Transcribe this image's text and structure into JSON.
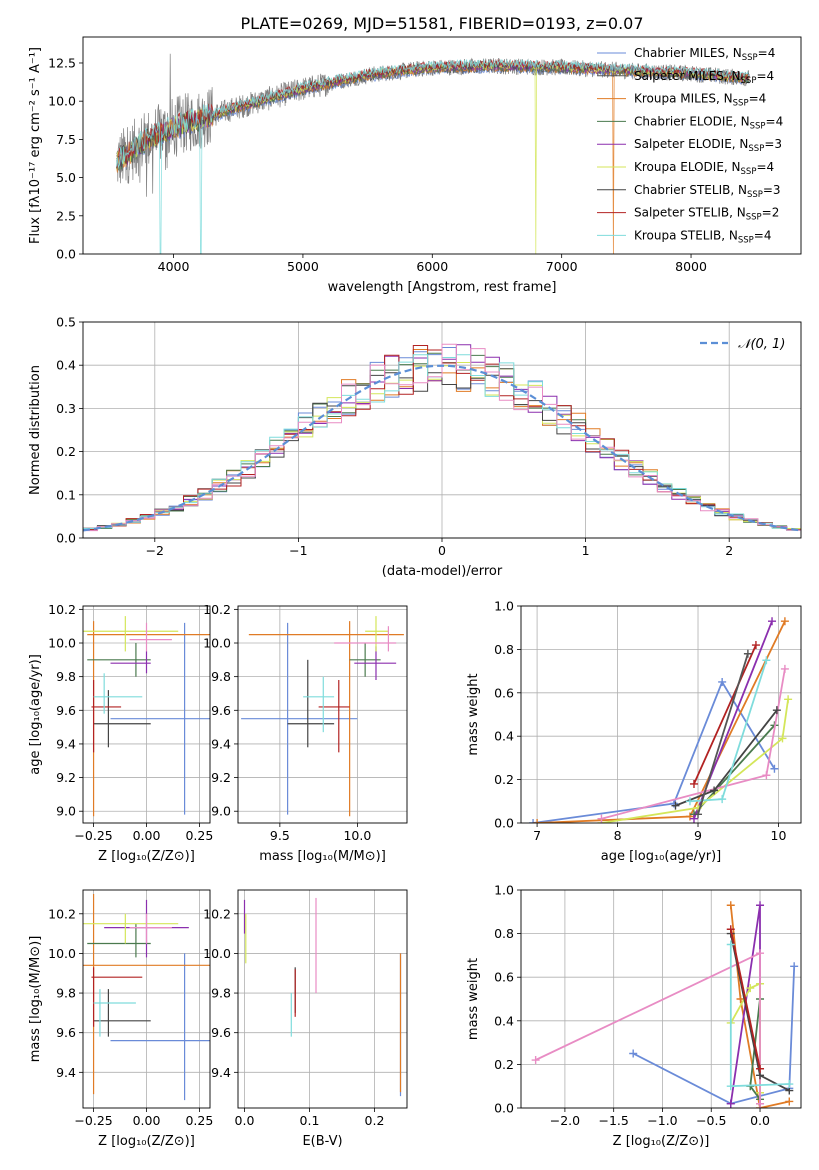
{
  "figure": {
    "title": "PLATE=0269, MJD=51581, FIBERID=0193, z=0.07"
  },
  "chart_data": [
    {
      "id": "spectrum",
      "type": "line",
      "xlabel": "wavelength [Angstrom, rest frame]",
      "ylabel": "Flux [fλ10⁻¹⁷ erg cm⁻² s⁻¹ A⁻¹]",
      "xlim": [
        3300,
        8850
      ],
      "ylim": [
        0,
        14.2
      ],
      "xticks": [
        4000,
        5000,
        6000,
        7000,
        8000
      ],
      "yticks": [
        0.0,
        2.5,
        5.0,
        7.5,
        10.0,
        12.5
      ],
      "legend": "right",
      "grid": false,
      "data_series": {
        "name": "",
        "color": "#808080",
        "x_range": [
          3560,
          8450
        ],
        "approx_continuum": [
          [
            3560,
            6.0
          ],
          [
            3800,
            7.5
          ],
          [
            4000,
            8.3
          ],
          [
            4500,
            9.6
          ],
          [
            5000,
            10.8
          ],
          [
            5500,
            11.7
          ],
          [
            6000,
            12.2
          ],
          [
            6500,
            12.3
          ],
          [
            7000,
            12.2
          ],
          [
            7500,
            12.0
          ],
          [
            8000,
            11.8
          ],
          [
            8450,
            11.5
          ]
        ]
      },
      "series": [
        {
          "name": "Chabrier MILES, N",
          "sub": "SSP",
          "suffix": "=4",
          "color": "#6a8bd8"
        },
        {
          "name": "Salpeter MILES, N",
          "sub": "SSP",
          "suffix": "=4",
          "color": "#555555"
        },
        {
          "name": "Kroupa MILES, N",
          "sub": "SSP",
          "suffix": "=4",
          "color": "#e07b25"
        },
        {
          "name": "Chabrier ELODIE, N",
          "sub": "SSP",
          "suffix": "=4",
          "color": "#4a7a4e"
        },
        {
          "name": "Salpeter ELODIE, N",
          "sub": "SSP",
          "suffix": "=3",
          "color": "#8b2fae"
        },
        {
          "name": "Kroupa ELODIE, N",
          "sub": "SSP",
          "suffix": "=4",
          "color": "#d4e65a"
        },
        {
          "name": "Chabrier STELIB, N",
          "sub": "SSP",
          "suffix": "=3",
          "color": "#444444"
        },
        {
          "name": "Salpeter STELIB, N",
          "sub": "SSP",
          "suffix": "=2",
          "color": "#b22222"
        },
        {
          "name": "Kroupa STELIB, N",
          "sub": "SSP",
          "suffix": "=4",
          "color": "#7fdcdc"
        }
      ]
    },
    {
      "id": "residuals",
      "type": "line",
      "xlabel": "(data-model)/error",
      "ylabel": "Normed distribution",
      "xlim": [
        -2.5,
        2.5
      ],
      "ylim": [
        0,
        0.5
      ],
      "xticks": [
        -2,
        -1,
        0,
        1,
        2
      ],
      "yticks": [
        0.0,
        0.1,
        0.2,
        0.3,
        0.4,
        0.5
      ],
      "grid": true,
      "legend": "top-right",
      "gaussian": {
        "name": "𝒩(0, 1)",
        "color": "#5b8fd6",
        "mean": 0,
        "sigma": 1
      },
      "bin_width": 0.1,
      "histogram_colors": [
        "#6a8bd8",
        "#e07b25",
        "#4a7a4e",
        "#8b2fae",
        "#d4e65a",
        "#444444",
        "#b22222",
        "#7fdcdc",
        "#e88cc4"
      ]
    },
    {
      "id": "age-vs-Z",
      "type": "scatter",
      "xlabel": "Z [log₁₀(Z/Z⊙)]",
      "ylabel": "age  [log₁₀(age/yr)]",
      "xlim": [
        -0.3,
        0.3
      ],
      "ylim": [
        8.93,
        10.22
      ],
      "xticks": [
        -0.25,
        0.0,
        0.25
      ],
      "xticklabels": [
        "−0.25",
        "0.00",
        "0.25"
      ],
      "yticks": [
        9.0,
        9.2,
        9.4,
        9.6,
        9.8,
        10.0,
        10.2
      ],
      "grid": true,
      "errorbars": [
        {
          "color": "#6a8bd8",
          "x": [
            -0.17,
            0.3
          ],
          "y": [
            8.98,
            10.12
          ],
          "cx": 0.18,
          "cy": 9.55
        },
        {
          "color": "#e07b25",
          "x": [
            -0.28,
            0.3
          ],
          "y": [
            8.97,
            10.13
          ],
          "cx": -0.25,
          "cy": 10.05
        },
        {
          "color": "#4a7a4e",
          "x": [
            -0.28,
            0.02
          ],
          "y": [
            9.8,
            10.0
          ],
          "cx": -0.05,
          "cy": 9.9
        },
        {
          "color": "#8b2fae",
          "x": [
            -0.17,
            0.02
          ],
          "y": [
            9.82,
            9.95
          ],
          "cx": 0.0,
          "cy": 9.88
        },
        {
          "color": "#d4e65a",
          "x": [
            -0.3,
            0.15
          ],
          "y": [
            9.95,
            10.16
          ],
          "cx": -0.1,
          "cy": 10.07
        },
        {
          "color": "#e88cc4",
          "x": [
            -0.08,
            0.12
          ],
          "y": [
            9.95,
            10.12
          ],
          "cx": 0.0,
          "cy": 10.02
        },
        {
          "color": "#444444",
          "x": [
            -0.25,
            0.02
          ],
          "y": [
            9.38,
            9.72
          ],
          "cx": -0.18,
          "cy": 9.52
        },
        {
          "color": "#b22222",
          "x": [
            -0.26,
            -0.12
          ],
          "y": [
            9.35,
            9.78
          ],
          "cx": -0.25,
          "cy": 9.62
        },
        {
          "color": "#7fdcdc",
          "x": [
            -0.25,
            -0.02
          ],
          "y": [
            9.58,
            9.82
          ],
          "cx": -0.2,
          "cy": 9.68
        }
      ]
    },
    {
      "id": "age-vs-mass",
      "type": "scatter",
      "xlabel": "mass [log₁₀(M/M⊙)]",
      "ylabel": "",
      "xlim": [
        9.23,
        10.32
      ],
      "ylim": [
        8.93,
        10.22
      ],
      "xticks": [
        9.5,
        10.0
      ],
      "yticks": [
        9.0,
        9.2,
        9.4,
        9.6,
        9.8,
        10.0,
        10.2
      ],
      "grid": true,
      "errorbars": [
        {
          "color": "#6a8bd8",
          "x": [
            9.25,
            10.0
          ],
          "y": [
            8.98,
            10.12
          ],
          "cx": 9.55,
          "cy": 9.55
        },
        {
          "color": "#e07b25",
          "x": [
            9.3,
            10.3
          ],
          "y": [
            8.97,
            10.13
          ],
          "cx": 9.95,
          "cy": 10.05
        },
        {
          "color": "#4a7a4e",
          "x": [
            9.95,
            10.15
          ],
          "y": [
            9.8,
            10.0
          ],
          "cx": 10.05,
          "cy": 9.9
        },
        {
          "color": "#8b2fae",
          "x": [
            9.98,
            10.25
          ],
          "y": [
            9.78,
            9.98
          ],
          "cx": 10.12,
          "cy": 9.88
        },
        {
          "color": "#d4e65a",
          "x": [
            10.05,
            10.2
          ],
          "y": [
            9.95,
            10.16
          ],
          "cx": 10.12,
          "cy": 10.07
        },
        {
          "color": "#e88cc4",
          "x": [
            9.85,
            10.25
          ],
          "y": [
            9.95,
            10.1
          ],
          "cx": 10.2,
          "cy": 10.0
        },
        {
          "color": "#444444",
          "x": [
            9.55,
            9.85
          ],
          "y": [
            9.38,
            9.9
          ],
          "cx": 9.68,
          "cy": 9.52
        },
        {
          "color": "#b22222",
          "x": [
            9.75,
            9.95
          ],
          "y": [
            9.35,
            9.78
          ],
          "cx": 9.88,
          "cy": 9.62
        },
        {
          "color": "#7fdcdc",
          "x": [
            9.65,
            9.85
          ],
          "y": [
            9.47,
            9.8
          ],
          "cx": 9.78,
          "cy": 9.68
        }
      ]
    },
    {
      "id": "massweight-vs-age",
      "type": "line",
      "xlabel": "age  [log₁₀(age/yr)]",
      "ylabel": "mass weight",
      "xlim": [
        6.8,
        10.28
      ],
      "ylim": [
        0,
        1.0
      ],
      "xticks": [
        7,
        8,
        9,
        10
      ],
      "yticks": [
        0.0,
        0.2,
        0.4,
        0.6,
        0.8,
        1.0
      ],
      "grid": true,
      "series": [
        {
          "color": "#6a8bd8",
          "points": [
            [
              6.95,
              0.0
            ],
            [
              8.7,
              0.09
            ],
            [
              9.3,
              0.65
            ],
            [
              9.95,
              0.25
            ]
          ]
        },
        {
          "color": "#e07b25",
          "points": [
            [
              7.0,
              0.0
            ],
            [
              8.9,
              0.03
            ],
            [
              10.08,
              0.93
            ]
          ]
        },
        {
          "color": "#4a7a4e",
          "points": [
            [
              8.95,
              0.04
            ],
            [
              9.95,
              0.45
            ]
          ]
        },
        {
          "color": "#8b2fae",
          "points": [
            [
              8.95,
              0.02
            ],
            [
              9.92,
              0.93
            ]
          ]
        },
        {
          "color": "#d4e65a",
          "points": [
            [
              7.8,
              0.0
            ],
            [
              9.0,
              0.07
            ],
            [
              10.05,
              0.39
            ],
            [
              10.12,
              0.57
            ]
          ]
        },
        {
          "color": "#e88cc4",
          "points": [
            [
              7.8,
              0.02
            ],
            [
              9.85,
              0.22
            ],
            [
              10.08,
              0.71
            ]
          ]
        },
        {
          "color": "#444444",
          "points": [
            [
              8.72,
              0.08
            ],
            [
              9.2,
              0.15
            ],
            [
              9.98,
              0.52
            ]
          ]
        },
        {
          "color": "#b22222",
          "points": [
            [
              8.95,
              0.18
            ],
            [
              9.72,
              0.82
            ]
          ]
        },
        {
          "color": "#7fdcdc",
          "points": [
            [
              8.9,
              0.1
            ],
            [
              9.3,
              0.11
            ],
            [
              9.85,
              0.75
            ]
          ]
        },
        {
          "color": "#555555",
          "points": [
            [
              9.0,
              0.04
            ],
            [
              9.62,
              0.78
            ]
          ]
        }
      ]
    },
    {
      "id": "mass-vs-Z",
      "type": "scatter",
      "xlabel": "Z [log₁₀(Z/Z⊙)]",
      "ylabel": "mass [log₁₀(M/M⊙)]",
      "xlim": [
        -0.3,
        0.3
      ],
      "ylim": [
        9.22,
        10.32
      ],
      "xticks": [
        -0.25,
        0.0,
        0.25
      ],
      "xticklabels": [
        "−0.25",
        "0.00",
        "0.25"
      ],
      "yticks": [
        9.4,
        9.6,
        9.8,
        10.0,
        10.2
      ],
      "grid": true,
      "errorbars": [
        {
          "color": "#6a8bd8",
          "x": [
            -0.17,
            0.3
          ],
          "y": [
            9.26,
            10.0
          ],
          "cx": 0.18,
          "cy": 9.56
        },
        {
          "color": "#e07b25",
          "x": [
            -0.3,
            0.3
          ],
          "y": [
            9.29,
            10.3
          ],
          "cx": -0.25,
          "cy": 9.94
        },
        {
          "color": "#4a7a4e",
          "x": [
            -0.28,
            0.02
          ],
          "y": [
            9.98,
            10.15
          ],
          "cx": -0.05,
          "cy": 10.05
        },
        {
          "color": "#8b2fae",
          "x": [
            -0.2,
            0.2
          ],
          "y": [
            9.98,
            10.27
          ],
          "cx": 0.0,
          "cy": 10.13
        },
        {
          "color": "#d4e65a",
          "x": [
            -0.3,
            0.15
          ],
          "y": [
            10.05,
            10.2
          ],
          "cx": -0.1,
          "cy": 10.15
        },
        {
          "color": "#e88cc4",
          "x": [
            -0.08,
            0.12
          ],
          "y": [
            10.05,
            10.2
          ],
          "cx": 0.0,
          "cy": 10.13
        },
        {
          "color": "#444444",
          "x": [
            -0.25,
            0.02
          ],
          "y": [
            9.58,
            9.82
          ],
          "cx": -0.18,
          "cy": 9.66
        },
        {
          "color": "#b22222",
          "x": [
            -0.26,
            -0.02
          ],
          "y": [
            9.63,
            9.93
          ],
          "cx": -0.25,
          "cy": 9.88
        },
        {
          "color": "#7fdcdc",
          "x": [
            -0.25,
            -0.05
          ],
          "y": [
            9.58,
            9.82
          ],
          "cx": -0.22,
          "cy": 9.75
        }
      ]
    },
    {
      "id": "mass-vs-ebv",
      "type": "scatter",
      "xlabel": "E(B-V)",
      "ylabel": "",
      "xlim": [
        -0.01,
        0.25
      ],
      "ylim": [
        9.22,
        10.32
      ],
      "xticks": [
        0.0,
        0.1,
        0.2
      ],
      "yticks": [
        9.4,
        9.6,
        9.8,
        10.0,
        10.2
      ],
      "grid": true,
      "vbars": [
        {
          "color": "#6a8bd8",
          "x": 0.24,
          "y": [
            9.28,
            10.0
          ]
        },
        {
          "color": "#e07b25",
          "x": 0.24,
          "y": [
            9.3,
            10.0
          ]
        },
        {
          "color": "#8b2fae",
          "x": 0.0,
          "y": [
            10.1,
            10.27
          ]
        },
        {
          "color": "#d4e65a",
          "x": 0.002,
          "y": [
            9.95,
            10.2
          ]
        },
        {
          "color": "#e88cc4",
          "x": 0.11,
          "y": [
            9.8,
            10.28
          ]
        },
        {
          "color": "#444444",
          "x": 0.078,
          "y": [
            9.7,
            9.93
          ]
        },
        {
          "color": "#b22222",
          "x": 0.078,
          "y": [
            9.68,
            9.92
          ]
        },
        {
          "color": "#7fdcdc",
          "x": 0.072,
          "y": [
            9.58,
            9.8
          ]
        }
      ]
    },
    {
      "id": "massweight-vs-Z",
      "type": "line",
      "xlabel": "Z [log₁₀(Z/Z⊙)]",
      "ylabel": "mass weight",
      "xlim": [
        -2.45,
        0.42
      ],
      "ylim": [
        0,
        1.0
      ],
      "xticks": [
        -2.0,
        -1.5,
        -1.0,
        -0.5,
        0.0
      ],
      "xticklabels": [
        "−2.0",
        "−1.5",
        "−1.0",
        "−0.5",
        "0.0"
      ],
      "yticks": [
        0.0,
        0.2,
        0.4,
        0.6,
        0.8,
        1.0
      ],
      "grid": true,
      "series": [
        {
          "color": "#6a8bd8",
          "points": [
            [
              -1.3,
              0.25
            ],
            [
              -0.3,
              0.02
            ],
            [
              0.3,
              0.09
            ],
            [
              0.35,
              0.65
            ]
          ]
        },
        {
          "color": "#e07b25",
          "points": [
            [
              -0.3,
              0.93
            ],
            [
              -0.2,
              0.5
            ],
            [
              0.0,
              0.0
            ],
            [
              0.3,
              0.03
            ]
          ]
        },
        {
          "color": "#4a7a4e",
          "points": [
            [
              0.0,
              0.5
            ],
            [
              -0.1,
              0.1
            ],
            [
              0.0,
              0.04
            ]
          ]
        },
        {
          "color": "#8b2fae",
          "points": [
            [
              -0.3,
              0.02
            ],
            [
              0.0,
              0.93
            ],
            [
              0.0,
              0.02
            ]
          ]
        },
        {
          "color": "#d4e65a",
          "points": [
            [
              -0.3,
              0.39
            ],
            [
              -0.1,
              0.55
            ],
            [
              0.0,
              0.57
            ],
            [
              0.0,
              0.07
            ]
          ]
        },
        {
          "color": "#e88cc4",
          "points": [
            [
              -2.3,
              0.22
            ],
            [
              0.0,
              0.71
            ],
            [
              0.0,
              0.02
            ]
          ]
        },
        {
          "color": "#444444",
          "points": [
            [
              -0.3,
              0.8
            ],
            [
              0.0,
              0.15
            ],
            [
              0.3,
              0.08
            ]
          ]
        },
        {
          "color": "#b22222",
          "points": [
            [
              -0.3,
              0.82
            ],
            [
              0.0,
              0.18
            ]
          ]
        },
        {
          "color": "#7fdcdc",
          "points": [
            [
              -0.3,
              0.75
            ],
            [
              -0.3,
              0.1
            ],
            [
              0.3,
              0.11
            ]
          ]
        }
      ]
    }
  ]
}
